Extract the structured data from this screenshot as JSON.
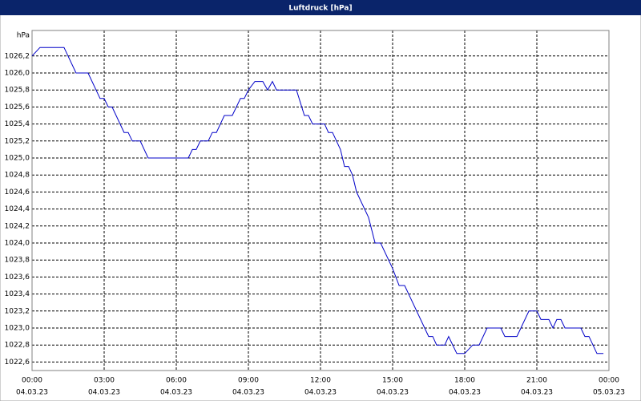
{
  "chart_data": {
    "type": "line",
    "title": "Luftdruck [hPa]",
    "y_label": "hPa",
    "color": "#0000c8",
    "grid": true,
    "x": [
      0,
      0.33,
      1.33,
      1.83,
      2.33,
      2.83,
      3,
      3.17,
      3.33,
      3.83,
      4,
      4.17,
      4.5,
      4.83,
      6.5,
      6.67,
      6.83,
      7,
      7.33,
      7.5,
      7.67,
      8,
      8.33,
      8.67,
      8.83,
      9,
      9.27,
      9.6,
      9.8,
      10,
      10.17,
      11,
      11.33,
      11.5,
      11.67,
      12.17,
      12.33,
      12.5,
      12.83,
      13,
      13.17,
      13.33,
      13.5,
      14,
      14.27,
      14.5,
      15,
      15.27,
      15.5,
      16.5,
      16.67,
      16.83,
      17.17,
      17.33,
      17.67,
      18,
      18.33,
      18.6,
      18.93,
      19.5,
      19.67,
      20.17,
      20.67,
      21,
      21.17,
      21.5,
      21.67,
      21.83,
      22,
      22.17,
      22.83,
      23,
      23.17,
      23.5,
      23.77
    ],
    "values": [
      1026.2,
      1026.3,
      1026.3,
      1026.0,
      1026.0,
      1025.7,
      1025.7,
      1025.6,
      1025.6,
      1025.3,
      1025.3,
      1025.2,
      1025.2,
      1025.0,
      1025.0,
      1025.1,
      1025.1,
      1025.2,
      1025.2,
      1025.3,
      1025.3,
      1025.5,
      1025.5,
      1025.7,
      1025.7,
      1025.8,
      1025.9,
      1025.9,
      1025.8,
      1025.9,
      1025.8,
      1025.8,
      1025.5,
      1025.5,
      1025.4,
      1025.4,
      1025.3,
      1025.3,
      1025.1,
      1024.9,
      1024.9,
      1024.8,
      1024.6,
      1024.3,
      1024.0,
      1024.0,
      1023.7,
      1023.5,
      1023.5,
      1022.9,
      1022.9,
      1022.8,
      1022.8,
      1022.9,
      1022.7,
      1022.7,
      1022.8,
      1022.8,
      1023.0,
      1023.0,
      1022.9,
      1022.9,
      1023.2,
      1023.2,
      1023.1,
      1023.1,
      1023.0,
      1023.1,
      1023.1,
      1023.0,
      1023.0,
      1022.9,
      1022.9,
      1022.7,
      1022.7
    ],
    "xlim": [
      0,
      24
    ],
    "xticks": [
      {
        "value": 0,
        "label": "00:00",
        "date": "04.03.23"
      },
      {
        "value": 3,
        "label": "03:00",
        "date": "04.03.23"
      },
      {
        "value": 6,
        "label": "06:00",
        "date": "04.03.23"
      },
      {
        "value": 9,
        "label": "09:00",
        "date": "04.03.23"
      },
      {
        "value": 12,
        "label": "12:00",
        "date": "04.03.23"
      },
      {
        "value": 15,
        "label": "15:00",
        "date": "04.03.23"
      },
      {
        "value": 18,
        "label": "18:00",
        "date": "04.03.23"
      },
      {
        "value": 21,
        "label": "21:00",
        "date": "04.03.23"
      },
      {
        "value": 24,
        "label": "00:00",
        "date": "05.03.23"
      }
    ],
    "ylim": [
      1022.5,
      1026.5
    ],
    "yticks": [
      {
        "value": 1022.6,
        "label": "1022,6"
      },
      {
        "value": 1022.8,
        "label": "1022,8"
      },
      {
        "value": 1023.0,
        "label": "1023,0"
      },
      {
        "value": 1023.2,
        "label": "1023,2"
      },
      {
        "value": 1023.4,
        "label": "1023,4"
      },
      {
        "value": 1023.6,
        "label": "1023,6"
      },
      {
        "value": 1023.8,
        "label": "1023,8"
      },
      {
        "value": 1024.0,
        "label": "1024,0"
      },
      {
        "value": 1024.2,
        "label": "1024,2"
      },
      {
        "value": 1024.4,
        "label": "1024,4"
      },
      {
        "value": 1024.6,
        "label": "1024,6"
      },
      {
        "value": 1024.8,
        "label": "1024,8"
      },
      {
        "value": 1025.0,
        "label": "1025,0"
      },
      {
        "value": 1025.2,
        "label": "1025,2"
      },
      {
        "value": 1025.4,
        "label": "1025,4"
      },
      {
        "value": 1025.6,
        "label": "1025,6"
      },
      {
        "value": 1025.8,
        "label": "1025,8"
      },
      {
        "value": 1026.0,
        "label": "1026,0"
      },
      {
        "value": 1026.2,
        "label": "1026,2"
      }
    ]
  }
}
